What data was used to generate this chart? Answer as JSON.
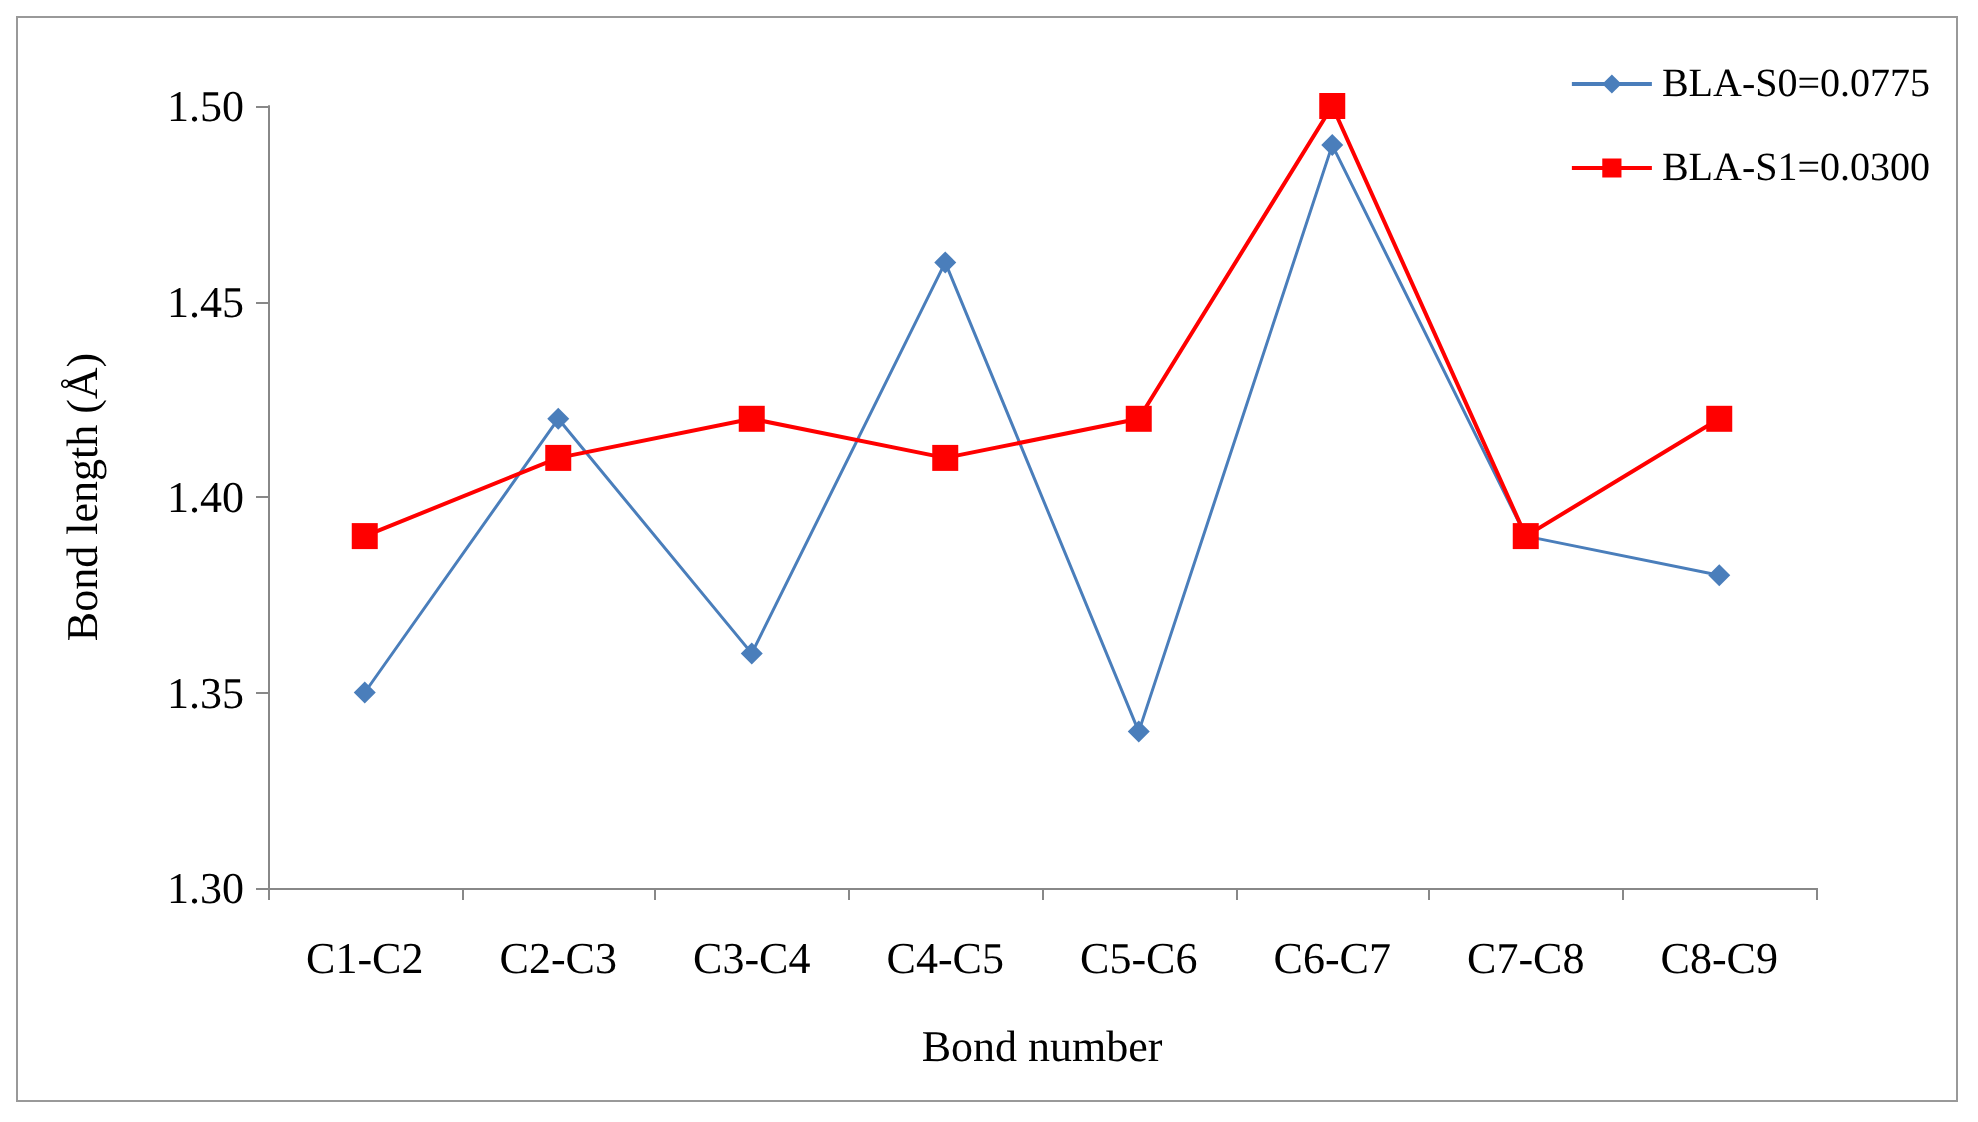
{
  "chart_data": {
    "type": "line",
    "xlabel": "Bond number",
    "ylabel": "Bond length (Å)",
    "categories": [
      "C1-C2",
      "C2-C3",
      "C3-C4",
      "C4-C5",
      "C5-C6",
      "C6-C7",
      "C7-C8",
      "C8-C9"
    ],
    "series": [
      {
        "name": "BLA-S0=0.0775",
        "color": "#4a7ebb",
        "marker": "diamond",
        "values": [
          1.35,
          1.42,
          1.36,
          1.46,
          1.34,
          1.49,
          1.39,
          1.38
        ]
      },
      {
        "name": "BLA-S1=0.0300",
        "color": "#ff0000",
        "marker": "square",
        "values": [
          1.39,
          1.41,
          1.42,
          1.41,
          1.42,
          1.5,
          1.39,
          1.42
        ]
      }
    ],
    "ylim": [
      1.3,
      1.5
    ],
    "yticks": [
      {
        "value": 1.3,
        "label": "1.30"
      },
      {
        "value": 1.35,
        "label": "1.35"
      },
      {
        "value": 1.4,
        "label": "1.40"
      },
      {
        "value": 1.45,
        "label": "1.45"
      },
      {
        "value": 1.5,
        "label": "1.50"
      }
    ],
    "grid": false,
    "legend": "top right",
    "line_style": "solid"
  }
}
